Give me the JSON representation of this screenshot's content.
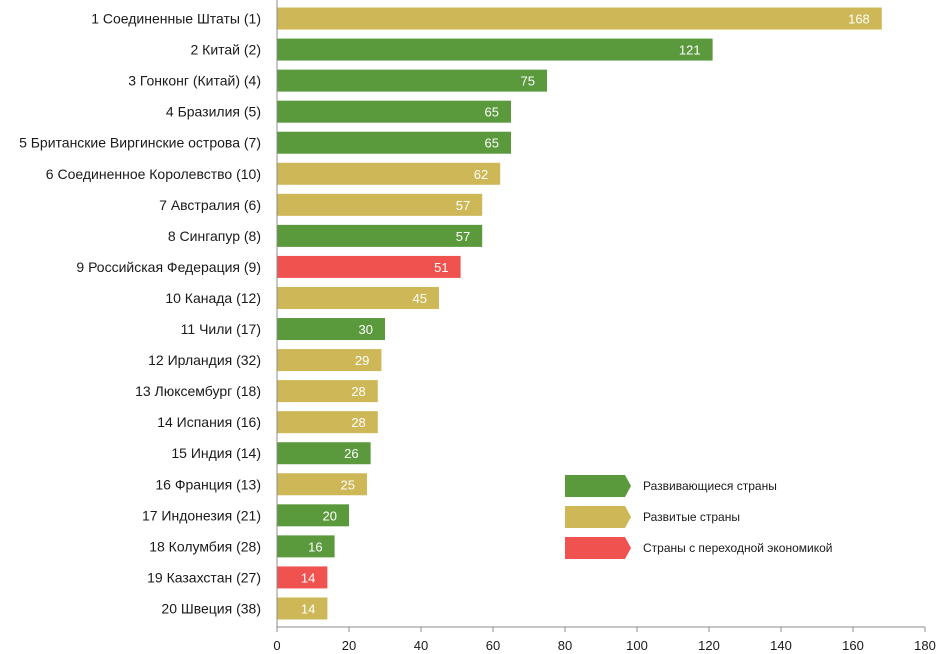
{
  "chart_data": {
    "type": "bar",
    "orientation": "horizontal",
    "categories": [
      "1 Соединенные Штаты (1)",
      "2 Китай (2)",
      "3 Гонконг (Китай) (4)",
      "4 Бразилия (5)",
      "5 Британские Виргинские острова (7)",
      "6 Соединенное Королевство (10)",
      "7 Австралия (6)",
      "8 Сингапур (8)",
      "9 Российская Федерация (9)",
      "10 Канада (12)",
      "11 Чили (17)",
      "12 Ирландия (32)",
      "13 Люксембург (18)",
      "14 Испания (16)",
      "15 Индия (14)",
      "16 Франция (13)",
      "17 Индонезия (21)",
      "18 Колумбия (28)",
      "19 Казахстан (27)",
      "20 Швеция (38)"
    ],
    "values": [
      168,
      121,
      75,
      65,
      65,
      62,
      57,
      57,
      51,
      45,
      30,
      29,
      28,
      28,
      26,
      25,
      20,
      16,
      14,
      14
    ],
    "groups": [
      "developed",
      "developing",
      "developing",
      "developing",
      "developing",
      "developed",
      "developed",
      "developing",
      "transition",
      "developed",
      "developing",
      "developed",
      "developed",
      "developed",
      "developing",
      "developed",
      "developing",
      "developing",
      "transition",
      "developed"
    ],
    "xlim": [
      0,
      180
    ],
    "xticks": [
      0,
      20,
      40,
      60,
      80,
      100,
      120,
      140,
      160,
      180
    ],
    "title": "",
    "xlabel": "",
    "ylabel": "",
    "grid": false,
    "legend_position": "bottom-right",
    "legend": [
      {
        "key": "developing",
        "label": "Развивающиеся страны",
        "color": "#5a9a3d"
      },
      {
        "key": "developed",
        "label": "Развитые страны",
        "color": "#cdb756"
      },
      {
        "key": "transition",
        "label": "Страны с переходной экономикой",
        "color": "#f0534f"
      }
    ]
  }
}
